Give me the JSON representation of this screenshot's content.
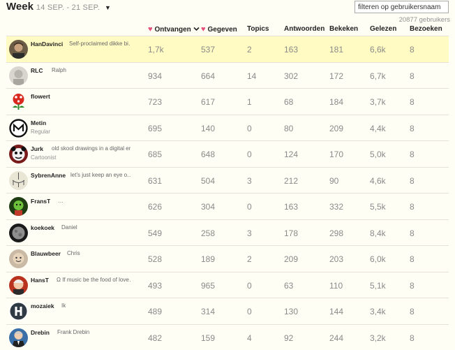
{
  "header": {
    "title": "Week",
    "range": "14 SEP. - 21 SEP.",
    "filter_placeholder": "filteren op gebruikersnaam",
    "user_count": "20877 gebruikers"
  },
  "columns": {
    "received": "Ontvangen",
    "given": "Gegeven",
    "topics": "Topics",
    "answers": "Antwoorden",
    "views": "Bekeken",
    "read": "Gelezen",
    "visits": "Bezoeken"
  },
  "colors": {
    "heart": "#e4507b",
    "highlight": "#fffbc2",
    "background": "#fffef5"
  },
  "rows": [
    {
      "name": "HanDavinci",
      "bio": "Self-proclaimed dikke bi…",
      "title": "",
      "received": "1,7k",
      "given": "537",
      "topics": "2",
      "answers": "163",
      "views": "181",
      "read": "6,6k",
      "visits": "8",
      "avatar": "photo-portrait"
    },
    {
      "name": "RLC",
      "bio": "Ralph",
      "title": "",
      "received": "934",
      "given": "664",
      "topics": "14",
      "answers": "302",
      "views": "172",
      "read": "6,7k",
      "visits": "8",
      "avatar": "grey-sketch"
    },
    {
      "name": "flowert",
      "bio": "",
      "title": "",
      "received": "723",
      "given": "617",
      "topics": "1",
      "answers": "68",
      "views": "184",
      "read": "3,7k",
      "visits": "8",
      "avatar": "piranha-plant"
    },
    {
      "name": "Metin",
      "bio": "",
      "title": "Regular",
      "received": "695",
      "given": "140",
      "topics": "0",
      "answers": "80",
      "views": "209",
      "read": "4,4k",
      "visits": "8",
      "avatar": "m-logo"
    },
    {
      "name": "Jurk",
      "bio": "old skool drawings in a digital era",
      "title": "Cartoonist",
      "received": "685",
      "given": "648",
      "topics": "0",
      "answers": "124",
      "views": "170",
      "read": "5,0k",
      "visits": "8",
      "avatar": "cartoon-face"
    },
    {
      "name": "SybrenAnne",
      "bio": "let's just keep an eye o…",
      "title": "",
      "received": "631",
      "given": "504",
      "topics": "3",
      "answers": "212",
      "views": "90",
      "read": "4,6k",
      "visits": "8",
      "avatar": "chandelier"
    },
    {
      "name": "FransT",
      "bio": "…",
      "title": "",
      "received": "626",
      "given": "304",
      "topics": "0",
      "answers": "163",
      "views": "332",
      "read": "5,5k",
      "visits": "8",
      "avatar": "green-figure"
    },
    {
      "name": "koekoek",
      "bio": "Daniel",
      "title": "",
      "received": "549",
      "given": "258",
      "topics": "3",
      "answers": "178",
      "views": "298",
      "read": "8,4k",
      "visits": "8",
      "avatar": "dark-moon"
    },
    {
      "name": "Blauwbeer",
      "bio": "Chris",
      "title": "",
      "received": "528",
      "given": "189",
      "topics": "2",
      "answers": "209",
      "views": "203",
      "read": "6,0k",
      "visits": "8",
      "avatar": "round-face"
    },
    {
      "name": "HansT",
      "bio": "Ω If music be the food of love…",
      "title": "",
      "received": "493",
      "given": "965",
      "topics": "0",
      "answers": "63",
      "views": "110",
      "read": "5,1k",
      "visits": "8",
      "avatar": "red-portrait"
    },
    {
      "name": "mozaiek",
      "bio": "Ik",
      "title": "",
      "received": "489",
      "given": "314",
      "topics": "0",
      "answers": "130",
      "views": "144",
      "read": "3,4k",
      "visits": "8",
      "avatar": "h-logo"
    },
    {
      "name": "Drebin",
      "bio": "Frank Drebin",
      "title": "",
      "received": "482",
      "given": "159",
      "topics": "4",
      "answers": "92",
      "views": "244",
      "read": "3,2k",
      "visits": "8",
      "avatar": "suit-portrait"
    }
  ]
}
